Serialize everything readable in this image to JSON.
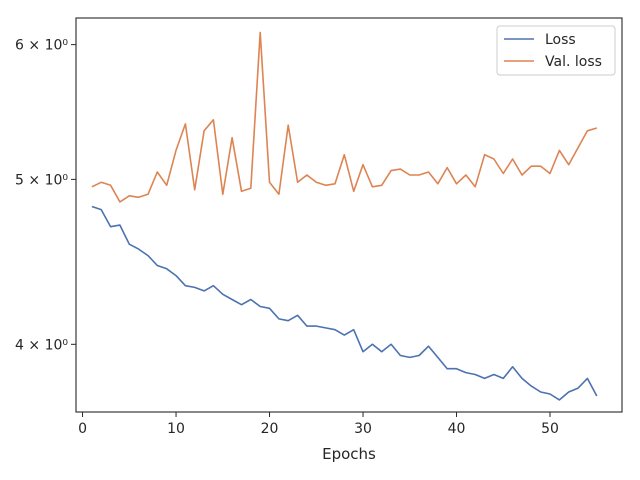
{
  "chart_data": {
    "type": "line",
    "title": "",
    "xlabel": "Epochs",
    "ylabel": "",
    "yscale": "log",
    "xlim": [
      -0.7,
      57.7
    ],
    "ylim": [
      3.65,
      6.22
    ],
    "x_ticks": [
      0,
      10,
      20,
      30,
      40,
      50
    ],
    "x_tick_labels": [
      "0",
      "10",
      "20",
      "30",
      "40",
      "50"
    ],
    "y_ticks": [
      4,
      5,
      6
    ],
    "y_tick_labels": [
      "4 × 10⁰",
      "5 × 10⁰",
      "6 × 10⁰"
    ],
    "grid": false,
    "legend_position": "top-right",
    "x": [
      1,
      2,
      3,
      4,
      5,
      6,
      7,
      8,
      9,
      10,
      11,
      12,
      13,
      14,
      15,
      16,
      17,
      18,
      19,
      20,
      21,
      22,
      23,
      24,
      25,
      26,
      27,
      28,
      29,
      30,
      31,
      32,
      33,
      34,
      35,
      36,
      37,
      38,
      39,
      40,
      41,
      42,
      43,
      44,
      45,
      46,
      47,
      48,
      49,
      50,
      51,
      52,
      53,
      54,
      55
    ],
    "series": [
      {
        "name": "Loss",
        "color": "#4c72b0",
        "values": [
          4.82,
          4.8,
          4.69,
          4.7,
          4.58,
          4.55,
          4.51,
          4.45,
          4.43,
          4.39,
          4.33,
          4.32,
          4.3,
          4.33,
          4.28,
          4.25,
          4.22,
          4.25,
          4.21,
          4.2,
          4.14,
          4.13,
          4.16,
          4.1,
          4.1,
          4.09,
          4.08,
          4.05,
          4.08,
          3.96,
          4.0,
          3.96,
          4.0,
          3.94,
          3.93,
          3.94,
          3.99,
          3.93,
          3.87,
          3.87,
          3.85,
          3.84,
          3.82,
          3.84,
          3.82,
          3.88,
          3.82,
          3.78,
          3.75,
          3.74,
          3.71,
          3.75,
          3.77,
          3.82,
          3.73
        ]
      },
      {
        "name": "Val. loss",
        "color": "#dd8452",
        "values": [
          4.95,
          4.98,
          4.96,
          4.85,
          4.89,
          4.88,
          4.9,
          5.05,
          4.96,
          5.2,
          5.39,
          4.93,
          5.34,
          5.42,
          4.9,
          5.29,
          4.92,
          4.94,
          6.1,
          4.98,
          4.9,
          5.38,
          4.98,
          5.03,
          4.98,
          4.96,
          4.97,
          5.17,
          4.92,
          5.1,
          4.95,
          4.96,
          5.06,
          5.07,
          5.03,
          5.03,
          5.05,
          4.97,
          5.08,
          4.97,
          5.03,
          4.95,
          5.17,
          5.14,
          5.04,
          5.14,
          5.03,
          5.09,
          5.09,
          5.04,
          5.2,
          5.1,
          5.22,
          5.34,
          5.36
        ]
      }
    ]
  }
}
